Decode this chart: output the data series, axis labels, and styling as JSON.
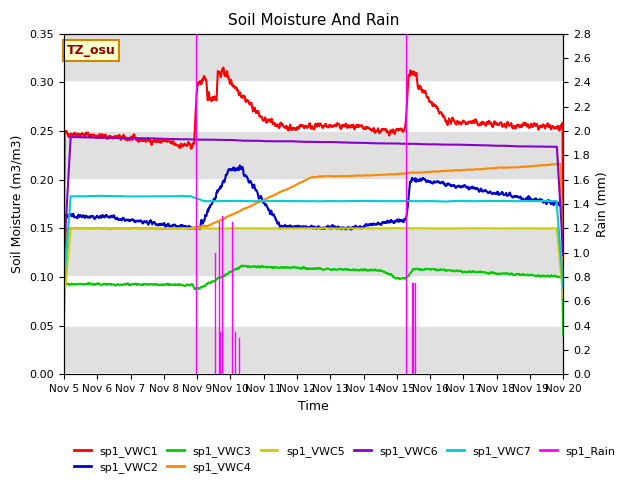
{
  "title": "Soil Moisture And Rain",
  "xlabel": "Time",
  "ylabel_left": "Soil Moisture (m3/m3)",
  "ylabel_right": "Rain (mm)",
  "xlim": [
    0,
    15
  ],
  "ylim_left": [
    0.0,
    0.35
  ],
  "ylim_right": [
    0.0,
    2.8
  ],
  "xtick_labels": [
    "Nov 5",
    "Nov 6",
    "Nov 7",
    "Nov 8",
    "Nov 9",
    "Nov 10",
    "Nov 11",
    "Nov 12",
    "Nov 13",
    "Nov 14",
    "Nov 15",
    "Nov 16",
    "Nov 17",
    "Nov 18",
    "Nov 19",
    "Nov 20"
  ],
  "ytick_left": [
    0.0,
    0.05,
    0.1,
    0.15,
    0.2,
    0.25,
    0.3,
    0.35
  ],
  "ytick_right": [
    0.0,
    0.2,
    0.4,
    0.6,
    0.8,
    1.0,
    1.2,
    1.4,
    1.6,
    1.8,
    2.0,
    2.2,
    2.4,
    2.6,
    2.8
  ],
  "annotation_text": "TZ_osu",
  "bg_bands": [
    [
      0.0,
      0.05
    ],
    [
      0.1,
      0.15
    ],
    [
      0.2,
      0.25
    ],
    [
      0.3,
      0.35
    ]
  ],
  "bg_band_color": "#e0e0e0",
  "series_colors": {
    "VWC1": "#ff0000",
    "VWC2": "#0000cc",
    "VWC3": "#00cc00",
    "VWC4": "#ff8800",
    "VWC5": "#cccc00",
    "VWC6": "#8800cc",
    "VWC7": "#00cccc",
    "Rain": "#ff00ff"
  },
  "legend_labels": [
    "sp1_VWC1",
    "sp1_VWC2",
    "sp1_VWC3",
    "sp1_VWC4",
    "sp1_VWC5",
    "sp1_VWC6",
    "sp1_VWC7",
    "sp1_Rain"
  ]
}
